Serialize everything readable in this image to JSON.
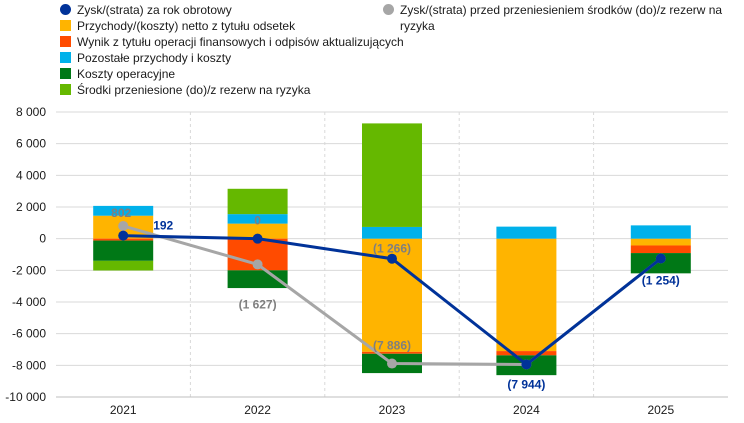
{
  "chart_data": {
    "type": "bar",
    "categories": [
      "2021",
      "2022",
      "2023",
      "2024",
      "2025"
    ],
    "ylim": [
      -10000,
      8000
    ],
    "yticks": [
      8000,
      6000,
      4000,
      2000,
      0,
      -2000,
      -4000,
      -6000,
      -8000,
      -10000
    ],
    "ytick_labels": [
      "8 000",
      "6 000",
      "4 000",
      "2 000",
      "0",
      "-2 000",
      "-4 000",
      "-6 000",
      "-8 000",
      "-10 000"
    ],
    "series": [
      {
        "name": "Przychody/(koszty) netto z tytułu odsetek",
        "color": "#ffb400",
        "values": [
          1450,
          950,
          -7150,
          -7100,
          -430
        ]
      },
      {
        "name": "Wynik z tytułu operacji finansowych i odpisów aktualizujących",
        "color": "#ff4b00",
        "values": [
          -120,
          -2000,
          -120,
          -270,
          -480
        ]
      },
      {
        "name": "Pozostałe przychody i koszty",
        "color": "#00b1ea",
        "values": [
          620,
          600,
          740,
          760,
          840
        ]
      },
      {
        "name": "Koszty operacyjne",
        "color": "#007816",
        "values": [
          -1280,
          -1120,
          -1220,
          -1250,
          -1280
        ]
      },
      {
        "name": "Środki przeniesione (do)/z rezerw na ryzyka",
        "color": "#65b800",
        "values": [
          -610,
          1600,
          6540,
          0,
          0
        ]
      }
    ],
    "lines": [
      {
        "name": "Zysk/(strata) za rok obrotowy",
        "color": "#003299",
        "values": [
          192,
          0,
          -1266,
          -7944,
          -1254
        ],
        "labels": [
          "192",
          "",
          "(1 266)",
          "(7 944)",
          "(1 254)"
        ]
      },
      {
        "name": "Zysk/(strata) przed przeniesieniem środków (do)/z rezerw na ryzyka",
        "color": "#a6a6a6",
        "values": [
          802,
          -1627,
          -7886,
          -7944,
          -1254
        ],
        "labels": [
          "802",
          "(1 627)",
          "(7 886)",
          "",
          ""
        ]
      },
      {
        "label_values": [
          "0"
        ]
      }
    ],
    "annotations": [
      "802",
      "0",
      "192",
      "(1 627)",
      "(1 266)",
      "(7 886)",
      "(7 944)",
      "(1 254)"
    ],
    "legend_position": "top"
  }
}
